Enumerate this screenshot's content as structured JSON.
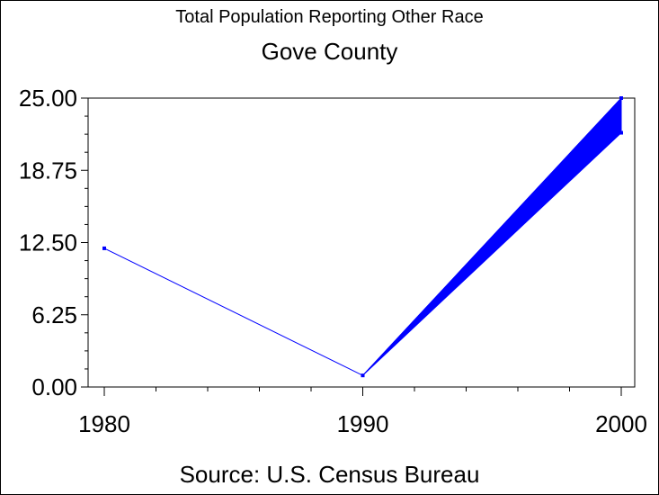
{
  "chart_data": {
    "type": "line",
    "title": "Total Population Reporting Other Race",
    "subtitle": "Gove County",
    "footnote": "Source: U.S. Census Bureau",
    "x": [
      1980,
      1990,
      2000
    ],
    "series": [
      {
        "values": [
          12,
          1,
          25
        ],
        "color": "#0000ff"
      }
    ],
    "band": {
      "x": [
        1990,
        2000
      ],
      "upper": [
        1,
        25
      ],
      "lower": [
        1,
        22
      ]
    },
    "xlim": [
      1980,
      2000
    ],
    "ylim": [
      0,
      25
    ],
    "x_ticks": [
      "1980",
      "1990",
      "2000"
    ],
    "y_ticks": [
      "0.00",
      "6.25",
      "12.50",
      "18.75",
      "25.00"
    ],
    "grid": false
  }
}
